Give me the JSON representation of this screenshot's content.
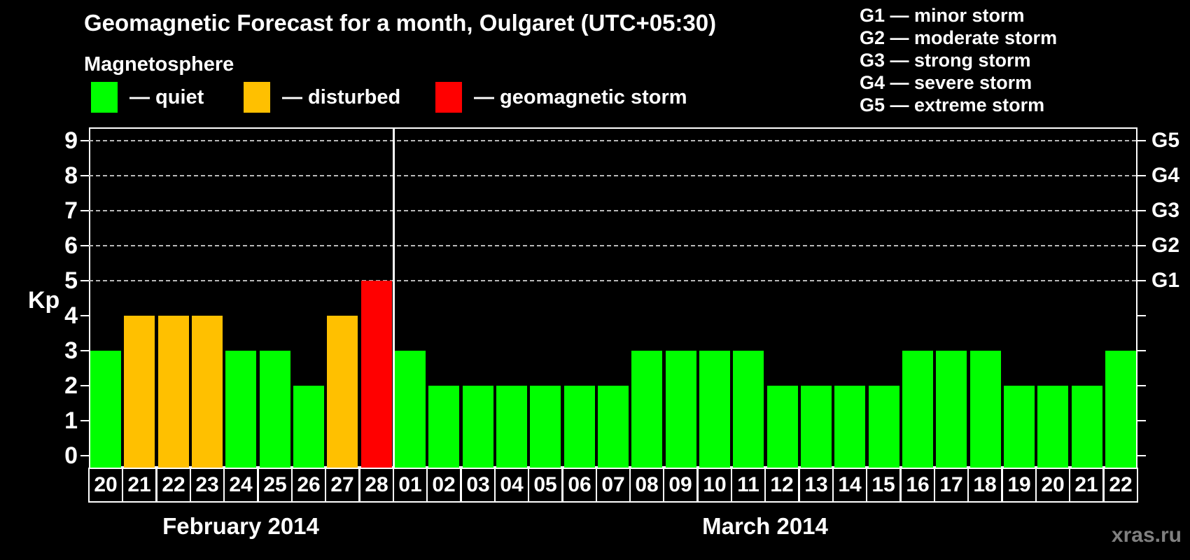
{
  "header": {
    "title": "Geomagnetic Forecast for a month, Oulgaret (UTC+05:30)",
    "subtitle": "Magnetosphere"
  },
  "legend": {
    "items": [
      {
        "label": "— quiet",
        "status": "quiet"
      },
      {
        "label": "— disturbed",
        "status": "disturbed"
      },
      {
        "label": "— geomagnetic storm",
        "status": "storm"
      }
    ]
  },
  "g_legend": {
    "items": [
      "G1 — minor storm",
      "G2 — moderate storm",
      "G3 — strong storm",
      "G4 — severe storm",
      "G5 — extreme storm"
    ]
  },
  "watermark": "xras.ru",
  "chart_data": {
    "type": "bar",
    "title": "Geomagnetic Forecast for a month, Oulgaret (UTC+05:30)",
    "xlabel": "",
    "ylabel": "Kp",
    "ylim": [
      0,
      9
    ],
    "yticks": [
      0,
      1,
      2,
      3,
      4,
      5,
      6,
      7,
      8,
      9
    ],
    "gridlines": [
      5,
      6,
      7,
      8,
      9
    ],
    "grid_style": "dashed horizontal lines at storm levels only",
    "legend_position": "top-left",
    "right_labels": [
      {
        "value": 5,
        "label": "G1"
      },
      {
        "value": 6,
        "label": "G2"
      },
      {
        "value": 7,
        "label": "G3"
      },
      {
        "value": 8,
        "label": "G4"
      },
      {
        "value": 9,
        "label": "G5"
      }
    ],
    "status_colors": {
      "quiet": "#00ff00",
      "disturbed": "#ffc000",
      "storm": "#ff0000"
    },
    "months": [
      {
        "label": "February 2014",
        "bars": [
          {
            "day": "20",
            "kp": 3,
            "status": "quiet"
          },
          {
            "day": "21",
            "kp": 4,
            "status": "disturbed"
          },
          {
            "day": "22",
            "kp": 4,
            "status": "disturbed"
          },
          {
            "day": "23",
            "kp": 4,
            "status": "disturbed"
          },
          {
            "day": "24",
            "kp": 3,
            "status": "quiet"
          },
          {
            "day": "25",
            "kp": 3,
            "status": "quiet"
          },
          {
            "day": "26",
            "kp": 2,
            "status": "quiet"
          },
          {
            "day": "27",
            "kp": 4,
            "status": "disturbed"
          },
          {
            "day": "28",
            "kp": 5,
            "status": "storm"
          }
        ]
      },
      {
        "label": "March 2014",
        "bars": [
          {
            "day": "01",
            "kp": 3,
            "status": "quiet"
          },
          {
            "day": "02",
            "kp": 2,
            "status": "quiet"
          },
          {
            "day": "03",
            "kp": 2,
            "status": "quiet"
          },
          {
            "day": "04",
            "kp": 2,
            "status": "quiet"
          },
          {
            "day": "05",
            "kp": 2,
            "status": "quiet"
          },
          {
            "day": "06",
            "kp": 2,
            "status": "quiet"
          },
          {
            "day": "07",
            "kp": 2,
            "status": "quiet"
          },
          {
            "day": "08",
            "kp": 3,
            "status": "quiet"
          },
          {
            "day": "09",
            "kp": 3,
            "status": "quiet"
          },
          {
            "day": "10",
            "kp": 3,
            "status": "quiet"
          },
          {
            "day": "11",
            "kp": 3,
            "status": "quiet"
          },
          {
            "day": "12",
            "kp": 2,
            "status": "quiet"
          },
          {
            "day": "13",
            "kp": 2,
            "status": "quiet"
          },
          {
            "day": "14",
            "kp": 2,
            "status": "quiet"
          },
          {
            "day": "15",
            "kp": 2,
            "status": "quiet"
          },
          {
            "day": "16",
            "kp": 3,
            "status": "quiet"
          },
          {
            "day": "17",
            "kp": 3,
            "status": "quiet"
          },
          {
            "day": "18",
            "kp": 3,
            "status": "quiet"
          },
          {
            "day": "19",
            "kp": 2,
            "status": "quiet"
          },
          {
            "day": "20",
            "kp": 2,
            "status": "quiet"
          },
          {
            "day": "21",
            "kp": 2,
            "status": "quiet"
          },
          {
            "day": "22",
            "kp": 3,
            "status": "quiet"
          }
        ]
      }
    ]
  }
}
